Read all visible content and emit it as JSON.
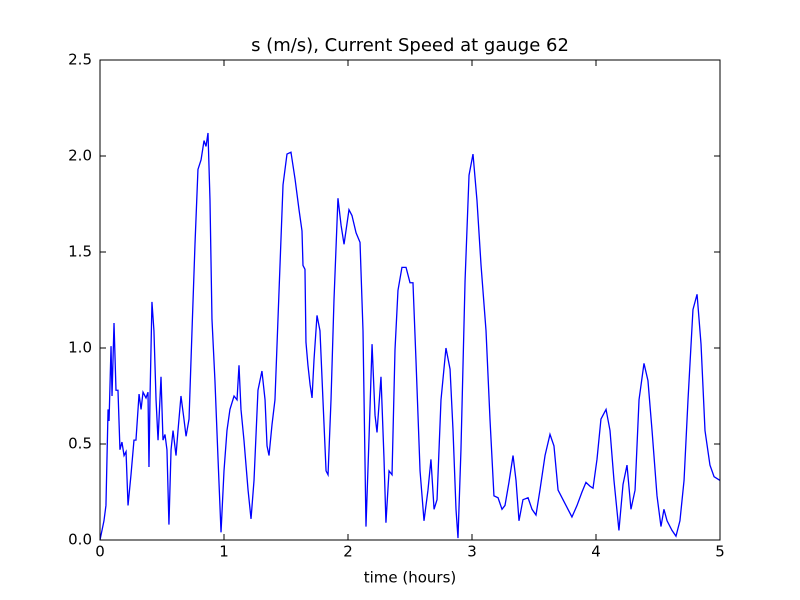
{
  "chart_data": {
    "type": "line",
    "title": "s (m/s), Current Speed at gauge 62",
    "xlabel": "time (hours)",
    "xlim": [
      0,
      5
    ],
    "xticks": [
      0,
      1,
      2,
      3,
      4,
      5
    ],
    "ylim": [
      0,
      2.5
    ],
    "yticks": [
      {
        "value": 0,
        "label": "0.0"
      },
      0.5,
      {
        "value": 1,
        "label": "1.0"
      },
      1.5,
      {
        "value": 2,
        "label": "2.0"
      },
      2.5
    ],
    "grid": false,
    "hlines": [
      {
        "value": 0,
        "color": "#000000",
        "style": "dashed"
      }
    ],
    "series": [
      {
        "color": "#0000ff",
        "x": [
          0,
          0.032,
          0.048,
          0.065,
          0.073,
          0.089,
          0.097,
          0.113,
          0.129,
          0.145,
          0.161,
          0.177,
          0.194,
          0.21,
          0.226,
          0.25,
          0.274,
          0.29,
          0.315,
          0.331,
          0.347,
          0.371,
          0.387,
          0.395,
          0.403,
          0.419,
          0.435,
          0.452,
          0.468,
          0.492,
          0.508,
          0.524,
          0.54,
          0.556,
          0.573,
          0.589,
          0.613,
          0.629,
          0.653,
          0.677,
          0.694,
          0.718,
          0.742,
          0.766,
          0.79,
          0.815,
          0.839,
          0.855,
          0.871,
          0.887,
          0.903,
          0.927,
          0.952,
          0.976,
          1.0,
          1.024,
          1.048,
          1.081,
          1.105,
          1.121,
          1.137,
          1.161,
          1.194,
          1.218,
          1.242,
          1.274,
          1.306,
          1.331,
          1.347,
          1.363,
          1.387,
          1.411,
          1.444,
          1.476,
          1.508,
          1.54,
          1.573,
          1.605,
          1.629,
          1.637,
          1.653,
          1.661,
          1.677,
          1.694,
          1.71,
          1.726,
          1.75,
          1.774,
          1.798,
          1.823,
          1.839,
          1.863,
          1.887,
          1.919,
          1.944,
          1.968,
          2.008,
          2.032,
          2.065,
          2.097,
          2.121,
          2.145,
          2.169,
          2.194,
          2.218,
          2.234,
          2.266,
          2.29,
          2.306,
          2.331,
          2.355,
          2.379,
          2.403,
          2.435,
          2.468,
          2.5,
          2.524,
          2.548,
          2.581,
          2.613,
          2.645,
          2.669,
          2.694,
          2.718,
          2.75,
          2.79,
          2.823,
          2.847,
          2.871,
          2.887,
          2.911,
          2.944,
          2.976,
          3.008,
          3.04,
          3.073,
          3.113,
          3.145,
          3.177,
          3.21,
          3.242,
          3.266,
          3.298,
          3.331,
          3.355,
          3.379,
          3.411,
          3.452,
          3.484,
          3.516,
          3.548,
          3.589,
          3.629,
          3.661,
          3.694,
          3.734,
          3.774,
          3.806,
          3.847,
          3.887,
          3.919,
          3.952,
          3.976,
          4.008,
          4.04,
          4.081,
          4.113,
          4.145,
          4.185,
          4.218,
          4.25,
          4.282,
          4.315,
          4.347,
          4.387,
          4.419,
          4.452,
          4.492,
          4.524,
          4.548,
          4.573,
          4.613,
          4.645,
          4.677,
          4.71,
          4.742,
          4.782,
          4.815,
          4.847,
          4.879,
          4.919,
          4.952,
          5.0
        ],
        "values": [
          0,
          0.1,
          0.18,
          0.68,
          0.62,
          1.01,
          0.75,
          1.13,
          0.78,
          0.78,
          0.47,
          0.51,
          0.44,
          0.46,
          0.18,
          0.34,
          0.52,
          0.52,
          0.76,
          0.68,
          0.77,
          0.74,
          0.77,
          0.38,
          0.73,
          1.24,
          1.09,
          0.73,
          0.52,
          0.85,
          0.52,
          0.55,
          0.47,
          0.08,
          0.47,
          0.57,
          0.44,
          0.57,
          0.75,
          0.63,
          0.54,
          0.63,
          1.09,
          1.54,
          1.93,
          1.98,
          2.08,
          2.05,
          2.12,
          1.77,
          1.15,
          0.83,
          0.42,
          0.04,
          0.36,
          0.57,
          0.68,
          0.75,
          0.73,
          0.91,
          0.68,
          0.52,
          0.26,
          0.11,
          0.31,
          0.78,
          0.88,
          0.73,
          0.49,
          0.44,
          0.6,
          0.73,
          1.3,
          1.85,
          2.01,
          2.02,
          1.88,
          1.72,
          1.61,
          1.43,
          1.41,
          1.03,
          0.91,
          0.81,
          0.74,
          0.94,
          1.17,
          1.09,
          0.73,
          0.36,
          0.34,
          0.73,
          1.25,
          1.78,
          1.64,
          1.54,
          1.72,
          1.69,
          1.6,
          1.55,
          1.09,
          0.07,
          0.52,
          1.02,
          0.65,
          0.56,
          0.85,
          0.43,
          0.09,
          0.36,
          0.34,
          0.99,
          1.3,
          1.42,
          1.42,
          1.34,
          1.34,
          0.94,
          0.36,
          0.1,
          0.26,
          0.42,
          0.16,
          0.21,
          0.73,
          1.0,
          0.89,
          0.57,
          0.16,
          0.01,
          0.47,
          1.35,
          1.9,
          2.01,
          1.77,
          1.43,
          1.09,
          0.63,
          0.23,
          0.22,
          0.16,
          0.18,
          0.3,
          0.44,
          0.31,
          0.1,
          0.21,
          0.22,
          0.16,
          0.13,
          0.26,
          0.44,
          0.55,
          0.49,
          0.26,
          0.21,
          0.16,
          0.12,
          0.18,
          0.25,
          0.3,
          0.28,
          0.27,
          0.42,
          0.63,
          0.68,
          0.57,
          0.31,
          0.05,
          0.29,
          0.39,
          0.16,
          0.26,
          0.73,
          0.92,
          0.83,
          0.57,
          0.23,
          0.07,
          0.16,
          0.1,
          0.05,
          0.02,
          0.1,
          0.31,
          0.73,
          1.2,
          1.28,
          1.02,
          0.57,
          0.39,
          0.33,
          0.31
        ]
      }
    ]
  }
}
